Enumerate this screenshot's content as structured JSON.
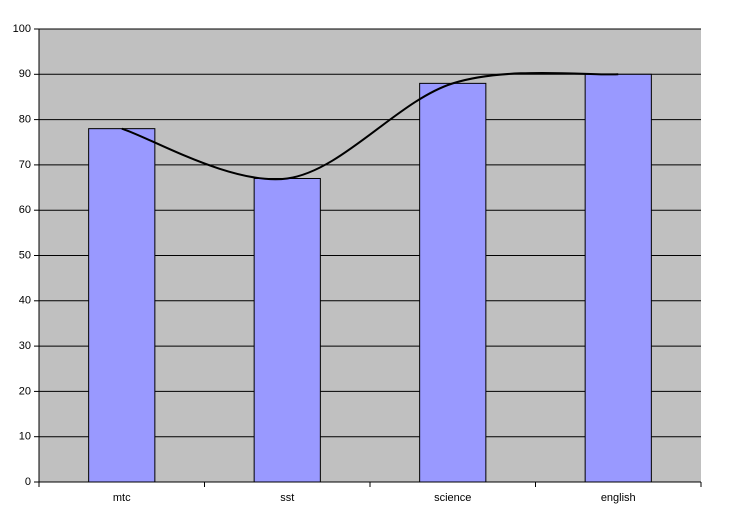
{
  "chart_data": {
    "type": "bar",
    "categories": [
      "mtc",
      "sst",
      "science",
      "english"
    ],
    "values": [
      78,
      67,
      88,
      90
    ],
    "color": "#9999ff",
    "smooth_line": true,
    "line_color": "#000000",
    "ylim": [
      0,
      100
    ],
    "yticks": [
      0,
      10,
      20,
      30,
      40,
      50,
      60,
      70,
      80,
      90,
      100
    ],
    "grid": true,
    "plot_background": "#c0c0c0"
  }
}
